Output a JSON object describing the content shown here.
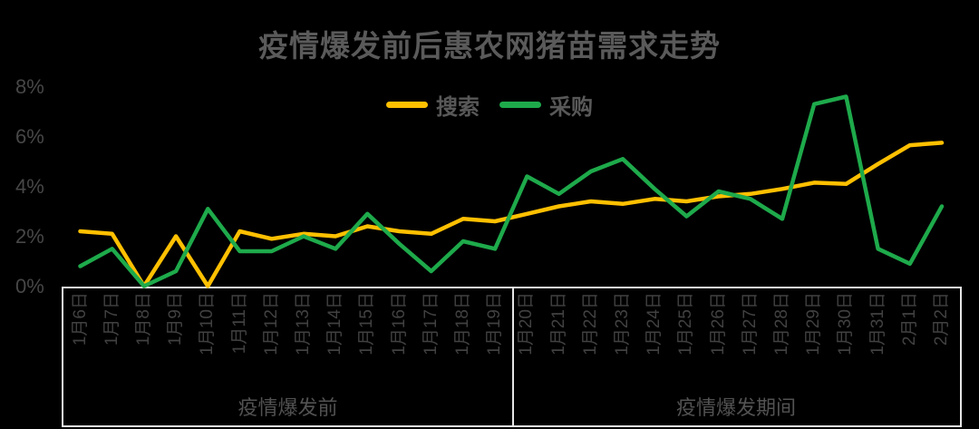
{
  "title": "疫情爆发前后惠农网猪苗需求走势",
  "colors": {
    "background": "#000000",
    "search_line": "#FFC000",
    "purchase_line": "#1EAA4B",
    "box_border": "#E6E6E6"
  },
  "legend": {
    "items": [
      {
        "key": "search",
        "label": "搜索",
        "color": "#FFC000"
      },
      {
        "key": "purchase",
        "label": "采购",
        "color": "#1EAA4B"
      }
    ]
  },
  "y_axis": {
    "unit": "%",
    "ticks": [
      {
        "label": "8%",
        "value": 8
      },
      {
        "label": "6%",
        "value": 6
      },
      {
        "label": "4%",
        "value": 4
      },
      {
        "label": "2%",
        "value": 2
      },
      {
        "label": "0%",
        "value": 0
      }
    ]
  },
  "periods": [
    {
      "key": "pre-outbreak",
      "label": "疫情爆发前",
      "from": "1月6日",
      "to": "1月19日"
    },
    {
      "key": "during-outbreak",
      "label": "疫情爆发期间",
      "from": "1月20日",
      "to": "2月2日"
    }
  ],
  "chart_data": {
    "type": "line",
    "title": "疫情爆发前后惠农网猪苗需求走势",
    "xlabel": "",
    "ylabel": "",
    "y_unit": "%",
    "ylim": [
      0,
      8
    ],
    "y_tick_step": 2,
    "grid": false,
    "legend_position": "top-center",
    "categories": [
      "1月6日",
      "1月7日",
      "1月8日",
      "1月9日",
      "1月10日",
      "1月11日",
      "1月12日",
      "1月13日",
      "1月14日",
      "1月15日",
      "1月16日",
      "1月17日",
      "1月18日",
      "1月19日",
      "1月20日",
      "1月21日",
      "1月22日",
      "1月23日",
      "1月24日",
      "1月25日",
      "1月26日",
      "1月27日",
      "1月28日",
      "1月29日",
      "1月30日",
      "1月31日",
      "2月1日",
      "2月2日"
    ],
    "series": [
      {
        "name": "搜索",
        "key": "search",
        "color": "#FFC000",
        "values": [
          2.2,
          2.1,
          0,
          2.0,
          0,
          2.2,
          1.9,
          2.1,
          2.0,
          2.4,
          2.2,
          2.1,
          2.7,
          2.6,
          2.9,
          3.2,
          3.4,
          3.3,
          3.5,
          3.4,
          3.6,
          3.7,
          3.9,
          4.15,
          4.1,
          4.9,
          5.65,
          5.75
        ]
      },
      {
        "name": "采购",
        "key": "purchase",
        "color": "#1EAA4B",
        "values": [
          0.8,
          1.5,
          0,
          0.6,
          3.1,
          1.4,
          1.4,
          2.0,
          1.5,
          2.9,
          1.7,
          0.6,
          1.8,
          1.5,
          4.4,
          3.7,
          4.6,
          5.1,
          3.9,
          2.8,
          3.8,
          3.5,
          2.7,
          7.3,
          7.6,
          1.5,
          0.9,
          3.2
        ]
      }
    ]
  }
}
